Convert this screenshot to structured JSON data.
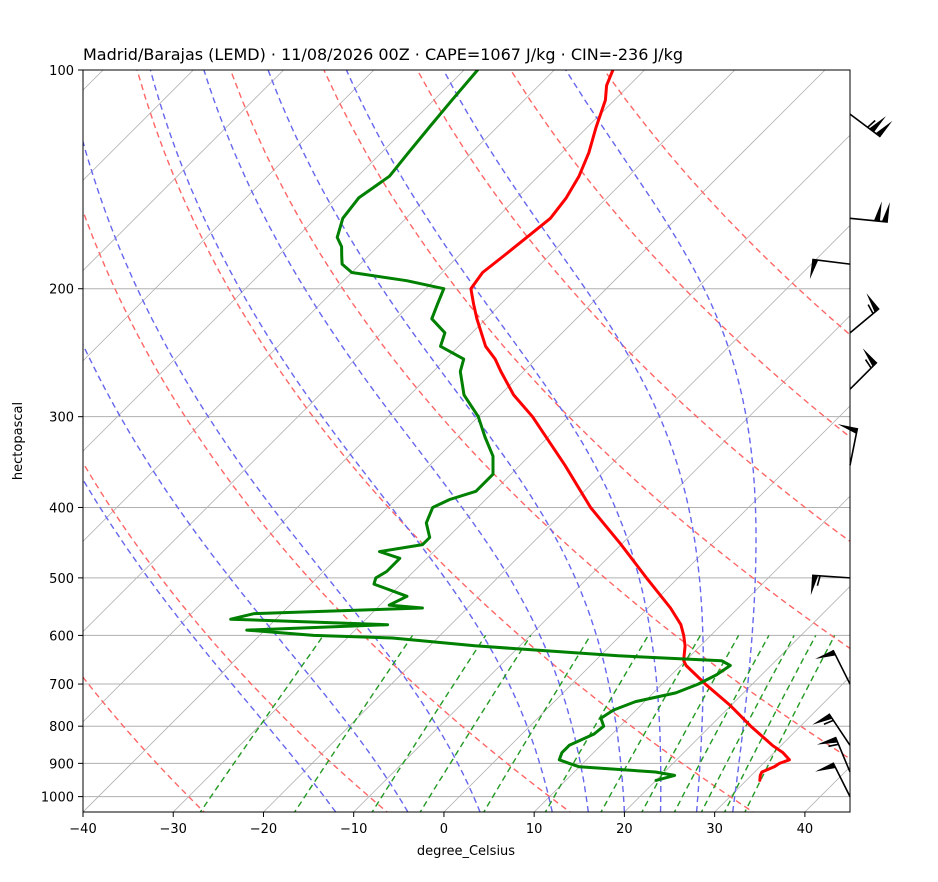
{
  "chart_data": {
    "type": "line",
    "chart_kind": "skew-t log-p",
    "title": "Madrid/Barajas (LEMD) · 11/08/2026 00Z · CAPE=1067 J/kg · CIN=-236 J/kg",
    "xlabel": "degree_Celsius",
    "ylabel": "hectopascal",
    "xlim": [
      -40,
      45
    ],
    "ylim": [
      1050,
      100
    ],
    "y_scale": "log",
    "skew": "isotherms skewed 45°",
    "x_ticks": [
      -40,
      -30,
      -20,
      -10,
      0,
      10,
      20,
      30,
      40
    ],
    "x_tick_labels": [
      "−40",
      "−30",
      "−20",
      "−10",
      "0",
      "10",
      "20",
      "30",
      "40"
    ],
    "y_ticks": [
      1000,
      900,
      800,
      700,
      600,
      500,
      400,
      300,
      200,
      100
    ],
    "y_tick_labels": [
      "1000",
      "900",
      "800",
      "700",
      "600",
      "500",
      "400",
      "300",
      "200",
      "100"
    ],
    "grid": true,
    "colors": {
      "temperature": "#ff0000",
      "dewpoint": "#008000",
      "dry_adiabats": "#ff6666",
      "moist_adiabats": "#6666ee",
      "mixing_ratio": "#229922",
      "isotherms": "#b0b0b0",
      "grid": "#b0b0b0",
      "wind_barbs": "#000000"
    },
    "background_lines": {
      "dry_adiabats_theta_C": [
        -30,
        -10,
        10,
        30,
        50,
        70,
        90,
        110,
        130
      ],
      "moist_adiabats_start_T_C": [
        -12,
        -4,
        4,
        12,
        16,
        20,
        24,
        28,
        32
      ],
      "mixing_ratio_top_hPa": 600
    },
    "series": [
      {
        "key": "temperature",
        "p": [
          950,
          935,
          925,
          910,
          900,
          890,
          870,
          850,
          800,
          750,
          700,
          660,
          650,
          640,
          620,
          600,
          580,
          550,
          500,
          450,
          400,
          350,
          300,
          280,
          260,
          250,
          240,
          220,
          210,
          200,
          190,
          180,
          170,
          160,
          150,
          140,
          130,
          120,
          110,
          105,
          100
        ],
        "t": [
          31.5,
          31.0,
          30.8,
          31.6,
          31.8,
          32.5,
          31.0,
          29.0,
          24.5,
          20.0,
          14.8,
          10.6,
          9.8,
          9.3,
          8.3,
          7.0,
          5.5,
          2.5,
          -3.5,
          -10.0,
          -17.5,
          -25.0,
          -34.0,
          -38.5,
          -42.5,
          -44.5,
          -47.0,
          -51.0,
          -53.0,
          -55.0,
          -55.5,
          -55.0,
          -54.5,
          -54.0,
          -54.5,
          -55.5,
          -57.0,
          -59.0,
          -61.0,
          -62.5,
          -63.5
        ]
      },
      {
        "key": "dewpoint",
        "p": [
          950,
          935,
          925,
          910,
          900,
          890,
          870,
          850,
          820,
          800,
          780,
          760,
          740,
          720,
          700,
          680,
          660,
          650,
          640,
          620,
          605,
          600,
          590,
          580,
          570,
          560,
          550,
          545,
          530,
          510,
          500,
          490,
          470,
          460,
          450,
          440,
          420,
          400,
          390,
          380,
          370,
          360,
          340,
          320,
          300,
          280,
          260,
          250,
          240,
          230,
          220,
          210,
          200,
          195,
          190,
          185,
          180,
          175,
          170,
          160,
          150,
          140,
          130,
          120,
          110,
          100
        ],
        "t": [
          20.0,
          21.5,
          19.0,
          10.0,
          8.5,
          7.0,
          6.5,
          6.5,
          8.0,
          8.2,
          7.0,
          7.5,
          9.0,
          12.5,
          14.0,
          15.0,
          15.5,
          14.0,
          2.0,
          -15.0,
          -25.0,
          -34.0,
          -42.0,
          -27.0,
          -45.0,
          -43.0,
          -25.0,
          -29.0,
          -28.0,
          -33.0,
          -33.5,
          -33.0,
          -33.0,
          -36.0,
          -32.0,
          -32.0,
          -34.0,
          -35.0,
          -34.0,
          -32.0,
          -32.0,
          -32.0,
          -34.0,
          -37.0,
          -40.0,
          -44.0,
          -47.0,
          -48.0,
          -52.0,
          -53.0,
          -56.0,
          -57.0,
          -58.0,
          -63.0,
          -70.0,
          -72.0,
          -73.0,
          -74.0,
          -75.5,
          -77.0,
          -77.5,
          -76.5,
          -77.0,
          -77.5,
          -78.0,
          -78.5
        ]
      }
    ],
    "wind_barbs": {
      "p": [
        1000,
        925,
        850,
        700,
        500,
        350,
        275,
        230,
        185,
        160,
        115
      ],
      "u": [
        -5,
        -5,
        -8,
        -5,
        -15,
        2,
        10,
        12,
        -8,
        20,
        20
      ],
      "v": [
        10,
        12,
        12,
        10,
        1,
        10,
        10,
        10,
        1,
        -2,
        -15
      ]
    }
  }
}
